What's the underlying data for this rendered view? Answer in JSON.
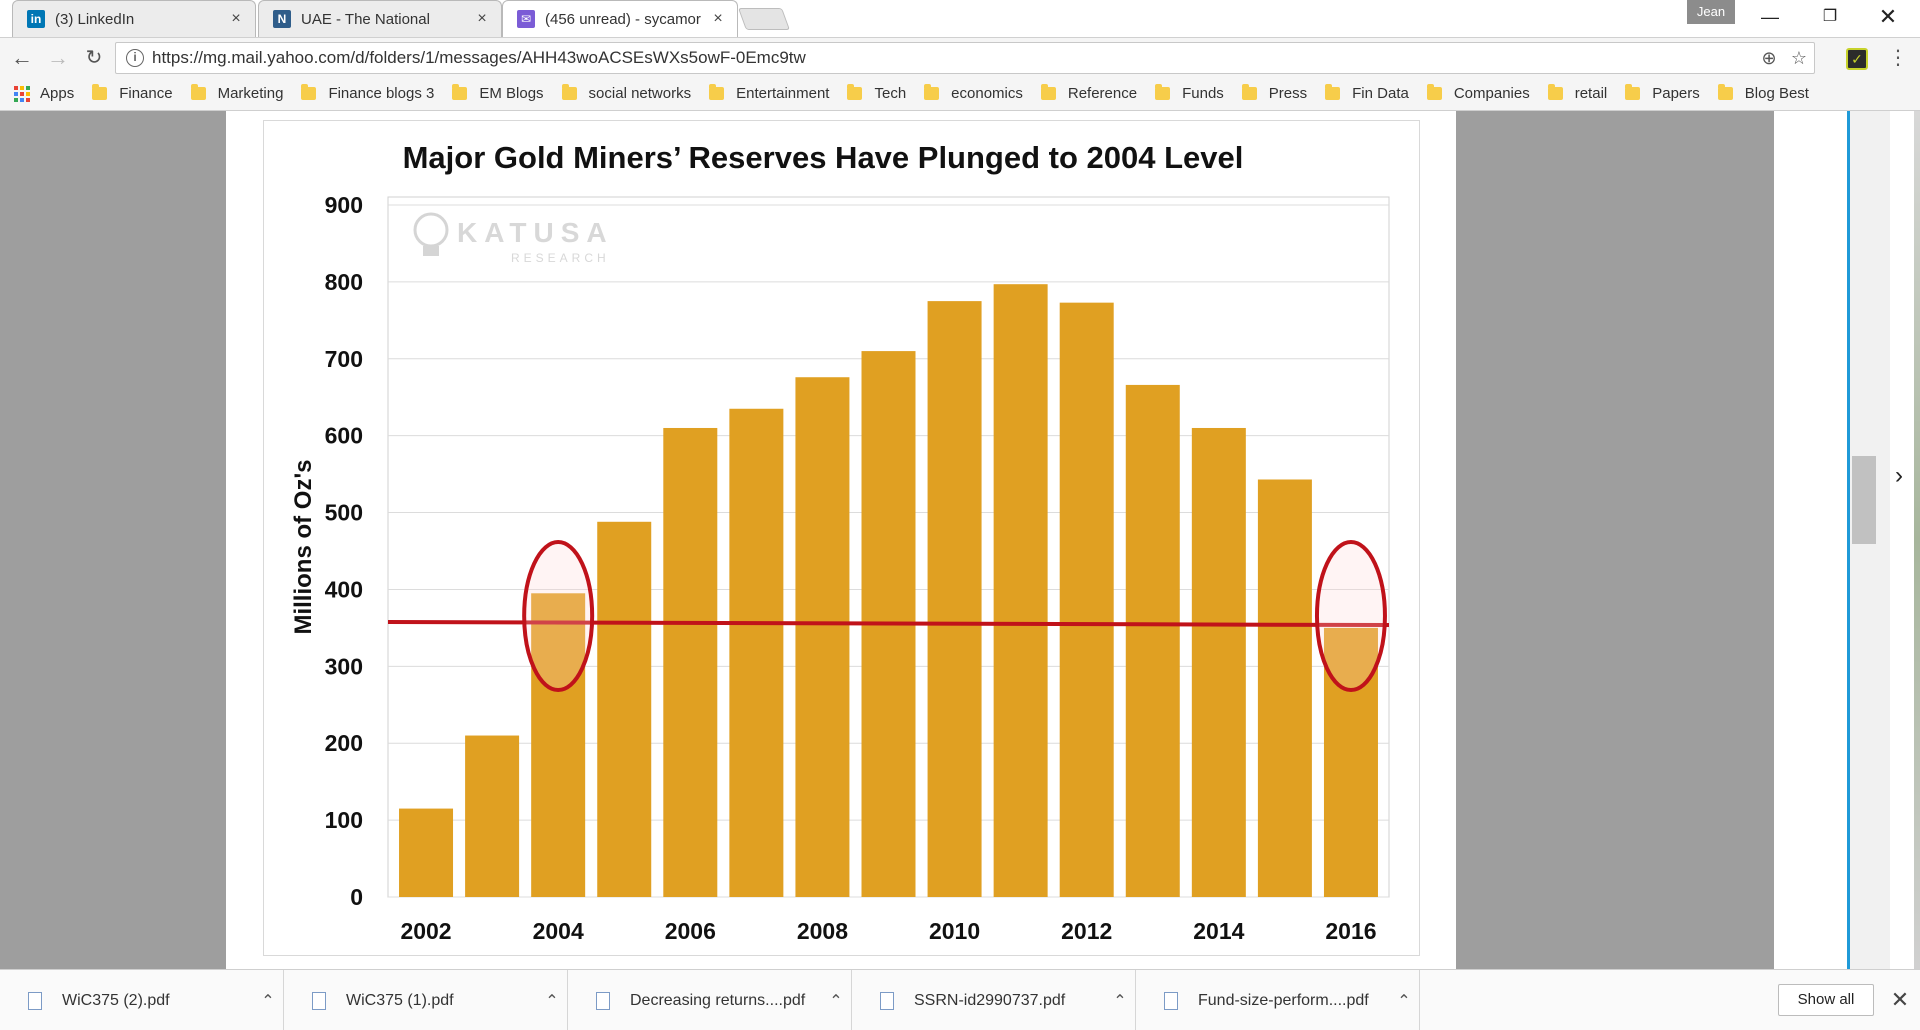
{
  "tabs": [
    {
      "title": "(3) LinkedIn",
      "favicon": "in",
      "color": "#0077b5"
    },
    {
      "title": "UAE - The National",
      "favicon": "N",
      "color": "#2f5d8a"
    },
    {
      "title": "(456 unread) - sycamore",
      "favicon": "✉",
      "color": "#7b5cd6"
    }
  ],
  "profile": "Jean",
  "address": {
    "url": "https://mg.mail.yahoo.com/d/folders/1/messages/AHH43woACSEsWXs5owF-0Emc9tw"
  },
  "bookmarks": {
    "apps_label": "Apps",
    "folders": [
      "Finance",
      "Marketing",
      "Finance blogs 3",
      "EM Blogs",
      "social networks",
      "Entertainment",
      "Tech",
      "economics",
      "Reference",
      "Funds",
      "Press",
      "Fin Data",
      "Companies",
      "retail",
      "Papers",
      "Blog Best"
    ]
  },
  "watermark": {
    "brand": "KATUSA",
    "sub": "RESEARCH"
  },
  "chart_data": {
    "type": "bar",
    "title": "Major Gold Miners’ Reserves Have Plunged to 2004 Level",
    "ylabel": "Millions of Oz's",
    "xlabel": "",
    "ylim": [
      0,
      900
    ],
    "yticks": [
      0,
      100,
      200,
      300,
      400,
      500,
      600,
      700,
      800,
      900
    ],
    "categories": [
      "2002",
      "2003",
      "2004",
      "2005",
      "2006",
      "2007",
      "2008",
      "2009",
      "2010",
      "2011",
      "2012",
      "2013",
      "2014",
      "2015",
      "2016"
    ],
    "x_tick_labels": [
      "2002",
      "",
      "2004",
      "",
      "2006",
      "",
      "2008",
      "",
      "2010",
      "",
      "2012",
      "",
      "2014",
      "",
      "2016"
    ],
    "values": [
      115,
      210,
      395,
      488,
      610,
      635,
      676,
      710,
      775,
      797,
      773,
      666,
      610,
      543,
      350
    ],
    "reference_line": 355,
    "highlighted": [
      "2004",
      "2016"
    ],
    "bar_color": "#e0a022",
    "line_color": "#c0121a",
    "grid": true
  },
  "downloads": [
    {
      "name": "WiC375 (2).pdf"
    },
    {
      "name": "WiC375 (1).pdf"
    },
    {
      "name": "Decreasing returns....pdf"
    },
    {
      "name": "SSRN-id2990737.pdf"
    },
    {
      "name": "Fund-size-perform....pdf"
    }
  ],
  "shelf": {
    "show_all": "Show all"
  }
}
